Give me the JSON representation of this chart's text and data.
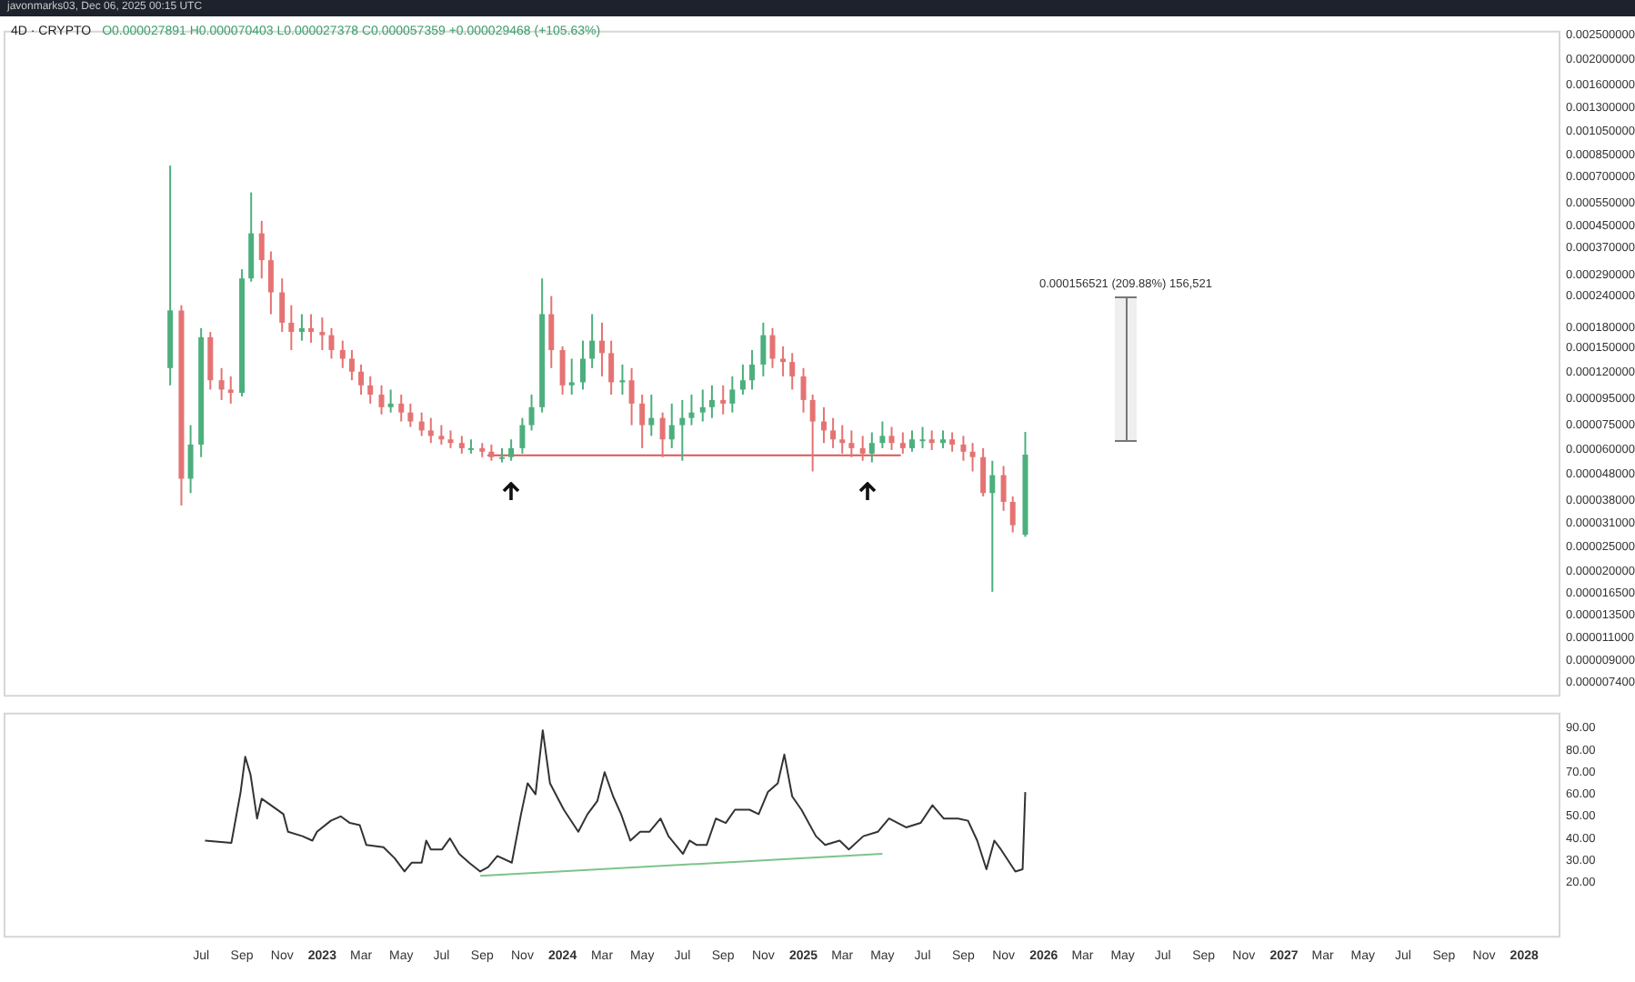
{
  "chart_data": [
    {
      "type": "candlestick",
      "title": "4D · CRYPTO",
      "subtitle": "O0.000027891 H0.000070403 L0.000027378 C0.000057359 +0.000029468 (+105.63%)",
      "annotations": [
        "javonmarks03, Dec 06, 2025 00:15 UTC",
        "0.000156521 (209.88%) 156,521"
      ],
      "x": [
        "2022-05-15",
        "2022-06-01",
        "2022-06-15",
        "2022-07-01",
        "2022-07-15",
        "2022-08-01",
        "2022-08-15",
        "2022-09-01",
        "2022-09-15",
        "2022-10-01",
        "2022-10-15",
        "2022-11-01",
        "2022-11-15",
        "2022-12-01",
        "2022-12-15",
        "2023-01-01",
        "2023-01-15",
        "2023-02-01",
        "2023-02-15",
        "2023-03-01",
        "2023-03-15",
        "2023-04-01",
        "2023-04-15",
        "2023-05-01",
        "2023-05-15",
        "2023-06-01",
        "2023-06-15",
        "2023-07-01",
        "2023-07-15",
        "2023-08-01",
        "2023-08-15",
        "2023-09-01",
        "2023-09-15",
        "2023-10-01",
        "2023-10-15",
        "2023-11-01",
        "2023-11-15",
        "2023-12-01",
        "2023-12-15",
        "2024-01-01",
        "2024-01-15",
        "2024-02-01",
        "2024-02-15",
        "2024-03-01",
        "2024-03-15",
        "2024-04-01",
        "2024-04-15",
        "2024-05-01",
        "2024-05-15",
        "2024-06-01",
        "2024-06-15",
        "2024-07-01",
        "2024-07-15",
        "2024-08-01",
        "2024-08-15",
        "2024-09-01",
        "2024-09-15",
        "2024-10-01",
        "2024-10-15",
        "2024-11-01",
        "2024-11-15",
        "2024-12-01",
        "2024-12-15",
        "2025-01-01",
        "2025-01-15",
        "2025-02-01",
        "2025-02-15",
        "2025-03-01",
        "2025-03-15",
        "2025-04-01",
        "2025-04-15",
        "2025-05-01",
        "2025-05-15",
        "2025-06-01",
        "2025-06-15",
        "2025-07-01",
        "2025-07-15",
        "2025-08-01",
        "2025-08-15",
        "2025-09-01",
        "2025-09-15",
        "2025-10-01",
        "2025-10-15",
        "2025-11-01",
        "2025-11-15",
        "2025-12-04"
      ],
      "ohlc": [
        [
          0.000125,
          0.000773,
          0.000107,
          0.00021
        ],
        [
          0.00021,
          0.00022,
          3.63e-05,
          4.62e-05
        ],
        [
          4.62e-05,
          7.48e-05,
          4.06e-05,
          6.28e-05
        ],
        [
          6.28e-05,
          0.000179,
          5.61e-05,
          0.000165
        ],
        [
          0.000165,
          0.000173,
          0.000103,
          0.000112
        ],
        [
          0.000112,
          0.000125,
          9.38e-05,
          0.000103
        ],
        [
          0.000103,
          0.000116,
          9.08e-05,
          0.0001
        ],
        [
          0.0001,
          0.000304,
          9.68e-05,
          0.00028
        ],
        [
          0.00028,
          0.000607,
          0.000272,
          0.00042
        ],
        [
          0.00042,
          0.00047,
          0.00028,
          0.00033
        ],
        [
          0.00033,
          0.000357,
          0.000203,
          0.000247
        ],
        [
          0.000247,
          0.00028,
          0.000173,
          0.000188
        ],
        [
          0.000188,
          0.00022,
          0.000147,
          0.000173
        ],
        [
          0.000173,
          0.000203,
          0.00016,
          0.000179
        ],
        [
          0.000179,
          0.000203,
          0.000157,
          0.000173
        ],
        [
          0.000173,
          0.000197,
          0.000147,
          0.000168
        ],
        [
          0.000168,
          0.000179,
          0.000136,
          0.000147
        ],
        [
          0.000147,
          0.00016,
          0.000125,
          0.000136
        ],
        [
          0.000136,
          0.000147,
          0.000112,
          0.000121
        ],
        [
          0.000121,
          0.000129,
          9.84e-05,
          0.000107
        ],
        [
          0.000107,
          0.000116,
          9.08e-05,
          9.84e-05
        ],
        [
          9.84e-05,
          0.000107,
          8.24e-05,
          8.79e-05
        ],
        [
          8.79e-05,
          0.000103,
          8.38e-05,
          9.08e-05
        ],
        [
          9.08e-05,
          9.84e-05,
          7.73e-05,
          8.38e-05
        ],
        [
          8.38e-05,
          9.08e-05,
          7.36e-05,
          7.73e-05
        ],
        [
          7.73e-05,
          8.38e-05,
          6.79e-05,
          7.13e-05
        ],
        [
          7.13e-05,
          7.98e-05,
          6.37e-05,
          6.79e-05
        ],
        [
          6.79e-05,
          7.48e-05,
          6.28e-05,
          6.58e-05
        ],
        [
          6.58e-05,
          7.13e-05,
          6.08e-05,
          6.37e-05
        ],
        [
          6.37e-05,
          6.79e-05,
          5.79e-05,
          6.08e-05
        ],
        [
          6.08e-05,
          6.58e-05,
          5.79e-05,
          6.08e-05
        ],
        [
          6.08e-05,
          6.37e-05,
          5.61e-05,
          5.89e-05
        ],
        [
          5.89e-05,
          6.28e-05,
          5.43e-05,
          5.61e-05
        ],
        [
          5.61e-05,
          6.08e-05,
          5.35e-05,
          5.61e-05
        ],
        [
          5.61e-05,
          6.58e-05,
          5.43e-05,
          6.08e-05
        ],
        [
          6.08e-05,
          7.98e-05,
          5.79e-05,
          7.48e-05
        ],
        [
          7.48e-05,
          9.84e-05,
          7.13e-05,
          8.79e-05
        ],
        [
          8.79e-05,
          0.00028,
          8.38e-05,
          0.000203
        ],
        [
          0.000203,
          0.000239,
          0.000125,
          0.000147
        ],
        [
          0.000147,
          0.000152,
          9.84e-05,
          0.000107
        ],
        [
          0.000107,
          0.000136,
          9.84e-05,
          0.00011
        ],
        [
          0.00011,
          0.00016,
          0.000103,
          0.000136
        ],
        [
          0.000136,
          0.000203,
          0.000125,
          0.00016
        ],
        [
          0.00016,
          0.000188,
          0.000116,
          0.000143
        ],
        [
          0.000143,
          0.00016,
          9.84e-05,
          0.00011
        ],
        [
          0.00011,
          0.000129,
          9.84e-05,
          0.000112
        ],
        [
          0.000112,
          0.000125,
          7.48e-05,
          9.08e-05
        ],
        [
          9.08e-05,
          9.84e-05,
          6.08e-05,
          7.48e-05
        ],
        [
          7.48e-05,
          9.84e-05,
          6.79e-05,
          7.98e-05
        ],
        [
          7.98e-05,
          8.38e-05,
          5.61e-05,
          6.58e-05
        ],
        [
          6.58e-05,
          9.08e-05,
          6.08e-05,
          7.48e-05
        ],
        [
          7.48e-05,
          9.38e-05,
          5.43e-05,
          7.98e-05
        ],
        [
          7.98e-05,
          9.84e-05,
          7.48e-05,
          8.38e-05
        ],
        [
          8.38e-05,
          0.000103,
          7.73e-05,
          8.79e-05
        ],
        [
          8.79e-05,
          0.000107,
          7.98e-05,
          9.38e-05
        ],
        [
          9.38e-05,
          0.000107,
          8.24e-05,
          9.08e-05
        ],
        [
          9.08e-05,
          0.000116,
          8.38e-05,
          0.000103
        ],
        [
          0.000103,
          0.000129,
          9.84e-05,
          0.000112
        ],
        [
          0.000112,
          0.000147,
          0.000103,
          0.000129
        ],
        [
          0.000129,
          0.000188,
          0.000116,
          0.000168
        ],
        [
          0.000168,
          0.000179,
          0.000125,
          0.000136
        ],
        [
          0.000136,
          0.000152,
          0.000116,
          0.000132
        ],
        [
          0.000132,
          0.000143,
          0.000103,
          0.000116
        ],
        [
          0.000116,
          0.000125,
          8.38e-05,
          9.38e-05
        ],
        [
          9.38e-05,
          9.84e-05,
          4.93e-05,
          7.73e-05
        ],
        [
          7.73e-05,
          8.79e-05,
          6.37e-05,
          7.13e-05
        ],
        [
          7.13e-05,
          7.98e-05,
          6.08e-05,
          6.58e-05
        ],
        [
          6.58e-05,
          7.48e-05,
          5.79e-05,
          6.37e-05
        ],
        [
          6.37e-05,
          7.13e-05,
          5.61e-05,
          6.08e-05
        ],
        [
          6.08e-05,
          6.79e-05,
          5.43e-05,
          5.79e-05
        ],
        [
          5.79e-05,
          7.01e-05,
          5.35e-05,
          6.37e-05
        ],
        [
          6.37e-05,
          7.73e-05,
          6.08e-05,
          6.79e-05
        ],
        [
          6.79e-05,
          7.36e-05,
          5.98e-05,
          6.37e-05
        ],
        [
          6.37e-05,
          7.01e-05,
          5.79e-05,
          6.08e-05
        ],
        [
          6.08e-05,
          7.13e-05,
          5.89e-05,
          6.58e-05
        ],
        [
          6.58e-05,
          7.36e-05,
          6.08e-05,
          6.58e-05
        ],
        [
          6.58e-05,
          7.13e-05,
          5.98e-05,
          6.37e-05
        ],
        [
          6.37e-05,
          7.13e-05,
          6.08e-05,
          6.58e-05
        ],
        [
          6.58e-05,
          7.01e-05,
          5.89e-05,
          6.28e-05
        ],
        [
          6.28e-05,
          6.79e-05,
          5.43e-05,
          5.89e-05
        ],
        [
          5.89e-05,
          6.37e-05,
          4.93e-05,
          5.61e-05
        ],
        [
          5.61e-05,
          6.08e-05,
          3.94e-05,
          4.06e-05
        ],
        [
          4.06e-05,
          5.43e-05,
          1.67e-05,
          4.77e-05
        ],
        [
          4.77e-05,
          5.18e-05,
          3.46e-05,
          3.75e-05
        ],
        [
          3.75e-05,
          3.94e-05,
          2.85e-05,
          3.04e-05
        ],
        [
          2.7891e-05,
          7.0403e-05,
          2.7378e-05,
          5.7359e-05
        ]
      ],
      "colors": [
        "#4caf7d",
        "#e57373",
        "#4caf7d",
        "#4caf7d",
        "#e57373",
        "#e57373",
        "#e57373",
        "#4caf7d",
        "#4caf7d",
        "#e57373",
        "#e57373",
        "#e57373",
        "#e57373",
        "#4caf7d",
        "#e57373",
        "#e57373",
        "#e57373",
        "#e57373",
        "#e57373",
        "#e57373",
        "#e57373",
        "#e57373",
        "#4caf7d",
        "#e57373",
        "#e57373",
        "#e57373",
        "#e57373",
        "#e57373",
        "#e57373",
        "#e57373",
        "#4caf7d",
        "#e57373",
        "#e57373",
        "#4caf7d",
        "#4caf7d",
        "#4caf7d",
        "#4caf7d",
        "#4caf7d",
        "#e57373",
        "#e57373",
        "#4caf7d",
        "#4caf7d",
        "#4caf7d",
        "#e57373",
        "#e57373",
        "#4caf7d",
        "#e57373",
        "#e57373",
        "#4caf7d",
        "#e57373",
        "#4caf7d",
        "#4caf7d",
        "#4caf7d",
        "#4caf7d",
        "#4caf7d",
        "#e57373",
        "#4caf7d",
        "#4caf7d",
        "#4caf7d",
        "#4caf7d",
        "#e57373",
        "#e57373",
        "#e57373",
        "#e57373",
        "#e57373",
        "#e57373",
        "#e57373",
        "#e57373",
        "#e57373",
        "#e57373",
        "#4caf7d",
        "#4caf7d",
        "#e57373",
        "#e57373",
        "#4caf7d",
        "#4caf7d",
        "#e57373",
        "#4caf7d",
        "#e57373",
        "#e57373",
        "#e57373",
        "#e57373",
        "#4caf7d",
        "#e57373",
        "#e57373",
        "#4caf7d"
      ],
      "series": [
        {
          "type": "line",
          "x": [
            "2023-09-09",
            "2025-05-29"
          ],
          "values": [
            5.7e-05,
            5.7e-05
          ],
          "color": "#e05555"
        }
      ],
      "xlim": [
        "2021-09-04",
        "2028-02-25"
      ],
      "ylim": [
        6.5e-06,
        0.0026
      ],
      "log": true,
      "tick_labels": "y",
      "yticks": [
        {
          "value": 0.0025,
          "label": "0.002500000"
        },
        {
          "value": 0.002,
          "label": "0.002000000"
        },
        {
          "value": 0.0016,
          "label": "0.001600000"
        },
        {
          "value": 0.0013,
          "label": "0.001300000"
        },
        {
          "value": 0.00105,
          "label": "0.001050000"
        },
        {
          "value": 0.00085,
          "label": "0.000850000"
        },
        {
          "value": 0.0007,
          "label": "0.000700000"
        },
        {
          "value": 0.00055,
          "label": "0.000550000"
        },
        {
          "value": 0.00045,
          "label": "0.000450000"
        },
        {
          "value": 0.00037,
          "label": "0.000370000"
        },
        {
          "value": 0.00029,
          "label": "0.000290000"
        },
        {
          "value": 0.00024,
          "label": "0.000240000"
        },
        {
          "value": 0.00018,
          "label": "0.000180000"
        },
        {
          "value": 0.00015,
          "label": "0.000150000"
        },
        {
          "value": 0.00012,
          "label": "0.000120000"
        },
        {
          "value": 9.5e-05,
          "label": "0.000095000"
        },
        {
          "value": 7.5e-05,
          "label": "0.000075000"
        },
        {
          "value": 6e-05,
          "label": "0.000060000"
        },
        {
          "value": 4.8e-05,
          "label": "0.000048000"
        },
        {
          "value": 3.8e-05,
          "label": "0.000038000"
        },
        {
          "value": 3.1e-05,
          "label": "0.000031000"
        },
        {
          "value": 2.5e-05,
          "label": "0.000025000"
        },
        {
          "value": 2e-05,
          "label": "0.000020000"
        },
        {
          "value": 1.65e-05,
          "label": "0.000016500"
        },
        {
          "value": 1.35e-05,
          "label": "0.000013500"
        },
        {
          "value": 1.1e-05,
          "label": "0.000011000"
        },
        {
          "value": 9e-06,
          "label": "0.000009000"
        },
        {
          "value": 7.4e-06,
          "label": "0.000007400"
        }
      ]
    },
    {
      "type": "line",
      "series": [
        {
          "x": [
            "2022-07-07",
            "2022-08-16",
            "2022-08-30",
            "2022-09-06",
            "2022-09-14",
            "2022-09-24",
            "2022-10-01",
            "2022-10-20",
            "2022-11-03",
            "2022-11-10",
            "2022-12-02",
            "2022-12-17",
            "2022-12-24",
            "2023-01-14",
            "2023-01-29",
            "2023-02-12",
            "2023-02-27",
            "2023-03-09",
            "2023-04-04",
            "2023-04-21",
            "2023-05-06",
            "2023-05-17",
            "2023-06-01",
            "2023-06-08",
            "2023-06-15",
            "2023-07-02",
            "2023-07-14",
            "2023-07-28",
            "2023-08-12",
            "2023-08-29",
            "2023-09-10",
            "2023-09-24",
            "2023-10-16",
            "2023-10-30",
            "2023-11-09",
            "2023-11-21",
            "2023-12-02",
            "2023-12-13",
            "2024-01-03",
            "2024-01-25",
            "2024-02-08",
            "2024-02-23",
            "2024-03-05",
            "2024-03-18",
            "2024-03-30",
            "2024-04-13",
            "2024-04-28",
            "2024-05-12",
            "2024-05-29",
            "2024-06-10",
            "2024-07-02",
            "2024-07-12",
            "2024-07-23",
            "2024-08-07",
            "2024-08-21",
            "2024-09-05",
            "2024-09-19",
            "2024-10-11",
            "2024-10-25",
            "2024-11-08",
            "2024-11-23",
            "2024-12-03",
            "2024-12-15",
            "2024-12-29",
            "2025-01-20",
            "2025-02-03",
            "2025-02-25",
            "2025-03-11",
            "2025-04-02",
            "2025-04-24",
            "2025-05-11",
            "2025-06-06",
            "2025-06-28",
            "2025-07-16",
            "2025-08-02",
            "2025-08-24",
            "2025-09-08",
            "2025-09-22",
            "2025-10-06",
            "2025-10-18",
            "2025-10-28",
            "2025-11-19",
            "2025-11-30",
            "2025-12-04"
          ],
          "values": [
            39,
            38,
            61,
            77,
            69,
            49,
            58,
            54,
            51,
            43,
            41,
            39,
            43,
            48,
            50,
            47,
            46,
            37,
            36,
            31,
            25,
            29,
            29,
            39,
            35,
            35,
            40,
            33,
            29,
            25,
            27,
            32,
            29,
            51,
            65,
            60,
            89,
            65,
            53,
            43,
            51,
            57,
            70,
            59,
            51,
            39,
            43,
            43,
            49,
            41,
            33,
            39,
            37,
            37,
            49,
            47,
            53,
            53,
            51,
            61,
            65,
            78,
            59,
            53,
            41,
            37,
            39,
            35,
            41,
            43,
            49,
            45,
            47,
            55,
            49,
            49,
            48,
            39,
            26,
            39,
            35,
            25,
            26,
            61
          ],
          "color": "#333333"
        },
        {
          "x": [
            "2023-08-29",
            "2025-05-01"
          ],
          "values": [
            23,
            33
          ],
          "color": "#7cc48a"
        }
      ],
      "xlim": [
        "2021-09-04",
        "2028-02-25"
      ],
      "ylim": [
        -5,
        97
      ],
      "yticks": [
        {
          "value": 20,
          "label": "20.00"
        },
        {
          "value": 30,
          "label": "30.00"
        },
        {
          "value": 40,
          "label": "40.00"
        },
        {
          "value": 50,
          "label": "50.00"
        },
        {
          "value": 60,
          "label": "60.00"
        },
        {
          "value": 70,
          "label": "70.00"
        },
        {
          "value": 80,
          "label": "80.00"
        },
        {
          "value": 90,
          "label": "90.00"
        }
      ],
      "xticks": [
        {
          "value": "2022-07-01",
          "label": "Jul"
        },
        {
          "value": "2022-09-01",
          "label": "Sep"
        },
        {
          "value": "2022-11-01",
          "label": "Nov"
        },
        {
          "value": "2023-01-01",
          "label": "2023"
        },
        {
          "value": "2023-03-01",
          "label": "Mar"
        },
        {
          "value": "2023-05-01",
          "label": "May"
        },
        {
          "value": "2023-07-01",
          "label": "Jul"
        },
        {
          "value": "2023-09-01",
          "label": "Sep"
        },
        {
          "value": "2023-11-01",
          "label": "Nov"
        },
        {
          "value": "2024-01-01",
          "label": "2024"
        },
        {
          "value": "2024-03-01",
          "label": "Mar"
        },
        {
          "value": "2024-05-01",
          "label": "May"
        },
        {
          "value": "2024-07-01",
          "label": "Jul"
        },
        {
          "value": "2024-09-01",
          "label": "Sep"
        },
        {
          "value": "2024-11-01",
          "label": "Nov"
        },
        {
          "value": "2025-01-01",
          "label": "2025"
        },
        {
          "value": "2025-03-01",
          "label": "Mar"
        },
        {
          "value": "2025-05-01",
          "label": "May"
        },
        {
          "value": "2025-07-01",
          "label": "Jul"
        },
        {
          "value": "2025-09-01",
          "label": "Sep"
        },
        {
          "value": "2025-11-01",
          "label": "Nov"
        },
        {
          "value": "2026-01-01",
          "label": "2026"
        },
        {
          "value": "2026-03-01",
          "label": "Mar"
        },
        {
          "value": "2026-05-01",
          "label": "May"
        },
        {
          "value": "2026-07-01",
          "label": "Jul"
        },
        {
          "value": "2026-09-01",
          "label": "Sep"
        },
        {
          "value": "2026-11-01",
          "label": "Nov"
        },
        {
          "value": "2027-01-01",
          "label": "2027"
        },
        {
          "value": "2027-03-01",
          "label": "Mar"
        },
        {
          "value": "2027-05-01",
          "label": "May"
        },
        {
          "value": "2027-07-01",
          "label": "Jul"
        },
        {
          "value": "2027-09-01",
          "label": "Sep"
        },
        {
          "value": "2027-11-01",
          "label": "Nov"
        },
        {
          "value": "2028-01-01",
          "label": "2028"
        }
      ]
    }
  ]
}
